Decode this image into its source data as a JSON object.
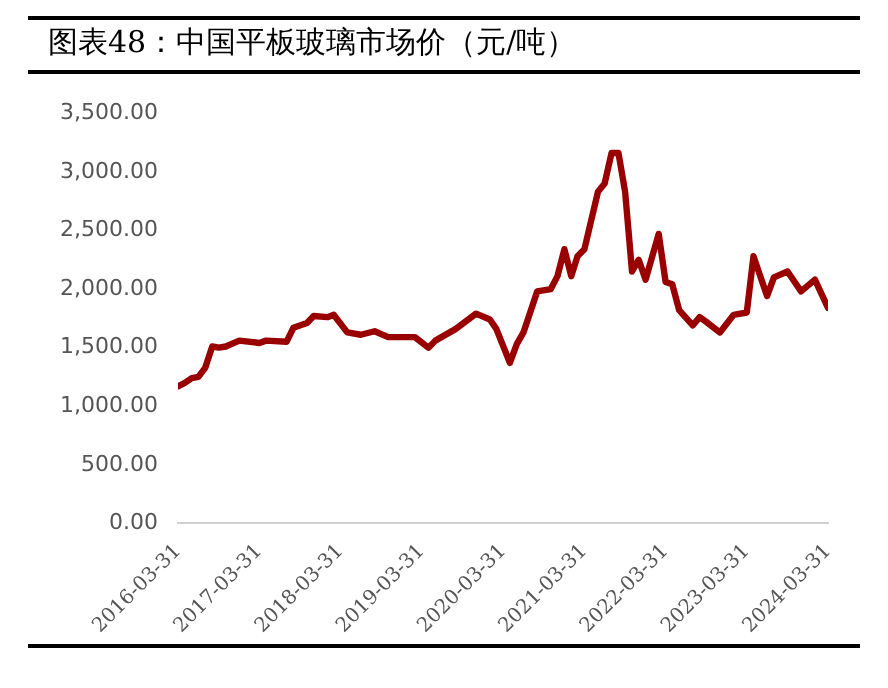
{
  "chart_data": {
    "type": "line",
    "title": "图表48：中国平板玻璃市场价（元/吨）",
    "x": [
      "2016-03-31",
      "2016-05",
      "2016-06",
      "2016-07",
      "2016-08",
      "2016-09",
      "2016-10",
      "2016-11",
      "2017-01",
      "2017-04",
      "2017-05",
      "2017-08",
      "2017-09",
      "2017-11",
      "2017-12",
      "2018-02",
      "2018-03",
      "2018-05",
      "2018-07",
      "2018-09",
      "2018-11",
      "2019-03",
      "2019-05",
      "2019-06",
      "2019-09",
      "2019-12",
      "2020-02",
      "2020-03",
      "2020-05",
      "2020-06",
      "2020-07",
      "2020-09",
      "2020-11",
      "2020-12",
      "2021-01",
      "2021-02",
      "2021-03",
      "2021-04",
      "2021-06",
      "2021-07",
      "2021-08",
      "2021-09",
      "2021-10",
      "2021-11",
      "2021-12",
      "2022-01",
      "2022-03",
      "2022-04",
      "2022-05",
      "2022-06",
      "2022-08",
      "2022-09",
      "2022-10",
      "2022-12",
      "2023-02",
      "2023-04",
      "2023-05",
      "2023-07",
      "2023-08",
      "2023-10",
      "2023-12",
      "2024-02",
      "2024-03-31"
    ],
    "series": [
      {
        "color": "#990000",
        "values": [
          1170,
          1200,
          1240,
          1250,
          1330,
          1510,
          1500,
          1510,
          1560,
          1540,
          1560,
          1550,
          1670,
          1710,
          1770,
          1760,
          1780,
          1630,
          1610,
          1640,
          1590,
          1590,
          1500,
          1560,
          1660,
          1790,
          1740,
          1660,
          1370,
          1530,
          1630,
          1980,
          2000,
          2110,
          2340,
          2110,
          2280,
          2340,
          2830,
          2900,
          3160,
          3160,
          2830,
          2150,
          2250,
          2080,
          2470,
          2060,
          2040,
          1820,
          1690,
          1760,
          1720,
          1630,
          1780,
          1800,
          2280,
          1940,
          2100,
          2150,
          1980,
          2080,
          1840
        ]
      }
    ],
    "xlim": [
      "2016-03-31",
      "2024-03-31"
    ],
    "xticks": [
      "2016-03-31",
      "2017-03-31",
      "2018-03-31",
      "2019-03-31",
      "2020-03-31",
      "2021-03-31",
      "2022-03-31",
      "2023-03-31",
      "2024-03-31"
    ],
    "ylim": [
      0,
      3500
    ],
    "yticks": [
      {
        "value": 0,
        "label": "0.00"
      },
      {
        "value": 500,
        "label": "500.00"
      },
      {
        "value": 1000,
        "label": "1,000.00"
      },
      {
        "value": 1500,
        "label": "1,500.00"
      },
      {
        "value": 2000,
        "label": "2,000.00"
      },
      {
        "value": 2500,
        "label": "2,500.00"
      },
      {
        "value": 3000,
        "label": "3,000.00"
      },
      {
        "value": 3500,
        "label": "3,500.00"
      }
    ],
    "grid": false,
    "legend": false,
    "marker": "none",
    "line_style": "solid"
  }
}
